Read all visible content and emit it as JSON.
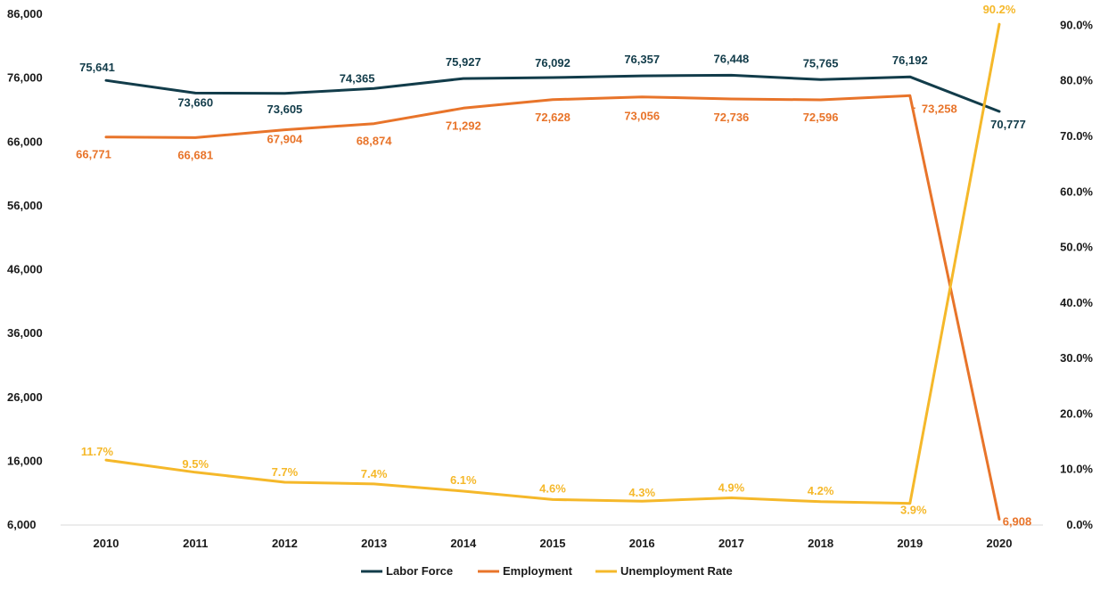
{
  "chart_data": {
    "type": "line",
    "title": "",
    "xlabel": "",
    "ylabel": "",
    "categories": [
      "2010",
      "2011",
      "2012",
      "2013",
      "2014",
      "2015",
      "2016",
      "2017",
      "2018",
      "2019",
      "2020"
    ],
    "y_left": {
      "lim": [
        6000,
        86000
      ],
      "ticks": [
        6000,
        16000,
        26000,
        36000,
        46000,
        56000,
        66000,
        76000,
        86000
      ],
      "tick_labels": [
        "6,000",
        "16,000",
        "26,000",
        "36,000",
        "46,000",
        "56,000",
        "66,000",
        "76,000",
        "86,000"
      ]
    },
    "y_right": {
      "lim": [
        0,
        92
      ],
      "ticks": [
        0,
        10,
        20,
        30,
        40,
        50,
        60,
        70,
        80,
        90
      ],
      "tick_labels": [
        "0.0%",
        "10.0%",
        "20.0%",
        "30.0%",
        "40.0%",
        "50.0%",
        "60.0%",
        "70.0%",
        "80.0%",
        "90.0%"
      ]
    },
    "series": [
      {
        "name": "Labor Force",
        "axis": "left",
        "color": "#123c4a",
        "values": [
          75641,
          73660,
          73605,
          74365,
          75927,
          76092,
          76357,
          76448,
          75765,
          76192,
          70777
        ],
        "labels": [
          "75,641",
          "73,660",
          "73,605",
          "74,365",
          "75,927",
          "76,092",
          "76,357",
          "76,448",
          "75,765",
          "76,192",
          "70,777"
        ]
      },
      {
        "name": "Employment",
        "axis": "left",
        "color": "#e8742a",
        "values": [
          66771,
          66681,
          67904,
          68874,
          71292,
          72628,
          73056,
          72736,
          72596,
          73258,
          6908
        ],
        "labels": [
          "66,771",
          "66,681",
          "67,904",
          "68,874",
          "71,292",
          "72,628",
          "73,056",
          "72,736",
          "72,596",
          "73,258",
          "6,908"
        ]
      },
      {
        "name": "Unemployment Rate",
        "axis": "right",
        "color": "#f5b82a",
        "values": [
          11.7,
          9.5,
          7.7,
          7.4,
          6.1,
          4.6,
          4.3,
          4.9,
          4.2,
          3.9,
          90.2
        ],
        "labels": [
          "11.7%",
          "9.5%",
          "7.7%",
          "7.4%",
          "6.1%",
          "4.6%",
          "4.3%",
          "4.9%",
          "4.2%",
          "3.9%",
          "90.2%"
        ]
      }
    ],
    "legend": {
      "position": "bottom",
      "items": [
        "Labor Force",
        "Employment",
        "Unemployment Rate"
      ]
    },
    "grid": false
  }
}
